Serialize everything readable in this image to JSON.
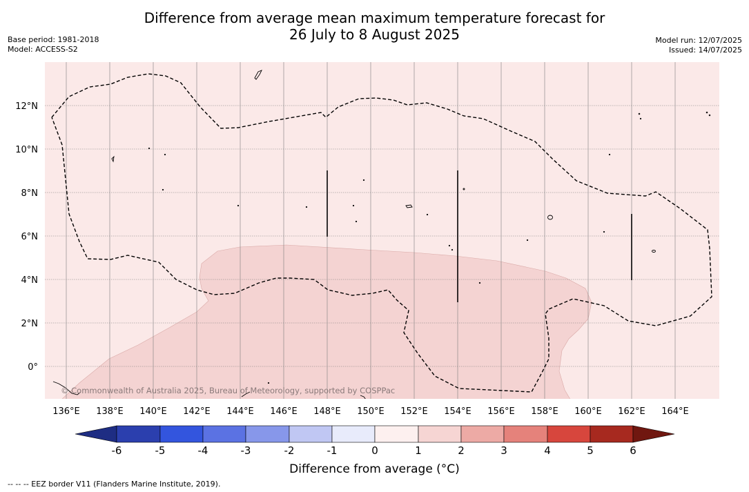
{
  "header": {
    "title_line1": "Difference from average mean maximum temperature forecast for",
    "title_line2": "26 July to 8 August 2025",
    "base_period": "Base period: 1981-2018",
    "model": "Model: ACCESS-S2",
    "model_run": "Model run: 12/07/2025",
    "issued": "Issued: 14/07/2025"
  },
  "map": {
    "lon_labels": [
      "136°E",
      "138°E",
      "140°E",
      "142°E",
      "144°E",
      "146°E",
      "148°E",
      "150°E",
      "152°E",
      "154°E",
      "156°E",
      "158°E",
      "160°E",
      "162°E",
      "164°E"
    ],
    "lat_labels": [
      "12°N",
      "10°N",
      "8°N",
      "6°N",
      "4°N",
      "2°N",
      "0°"
    ],
    "watermark": "© Commonwealth of Australia 2025, Bureau of Meteorology, supported by COSPPac",
    "colors": {
      "zone_0_1": "#fbe9e8",
      "zone_1_2": "#f4d3d2",
      "grid": "#7d7d7d"
    }
  },
  "colorbar": {
    "ticks": [
      "-6",
      "-5",
      "-4",
      "-3",
      "-2",
      "-1",
      "0",
      "1",
      "2",
      "3",
      "4",
      "5",
      "6"
    ],
    "colors": [
      "#1e2d83",
      "#2b3fae",
      "#3355de",
      "#5b72e3",
      "#8797ea",
      "#c0c7f3",
      "#e8ebfb",
      "#fdf0ef",
      "#f6d5d3",
      "#edaaa5",
      "#e5827b",
      "#d7463d",
      "#a7291f",
      "#701710"
    ],
    "label": "Difference from average (°C)"
  },
  "footnote": "--  --  -- EEZ border V11 (Flanders Marine Institute, 2019)."
}
